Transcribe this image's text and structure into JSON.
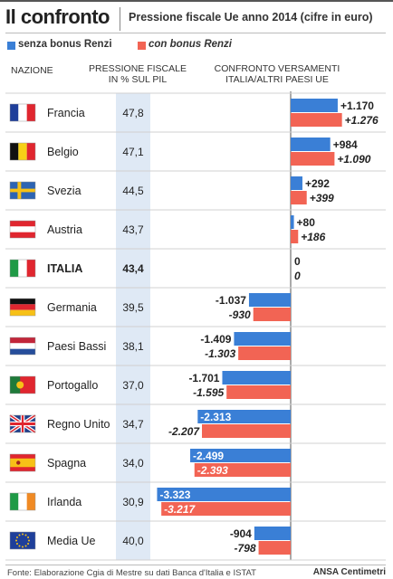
{
  "title": "Il confronto",
  "subtitle": "Pressione fiscale Ue anno 2014 (cifre in euro)",
  "legend": [
    {
      "label": "senza bonus Renzi",
      "color": "#3a7fd6"
    },
    {
      "label": "con bonus Renzi",
      "color": "#f26454"
    }
  ],
  "headers": {
    "nation": "NAZIONE",
    "pressure_line1": "PRESSIONE FISCALE",
    "pressure_line2": "IN % SUL PIL",
    "compare_line1": "CONFRONTO VERSAMENTI",
    "compare_line2": "ITALIA/ALTRI PAESI UE"
  },
  "footer": {
    "source": "Fonte: Elaborazione Cgia di Mestre su dati Banca d'Italia e ISTAT",
    "credit": "ANSA Centimetri"
  },
  "chart_data": {
    "type": "bar",
    "orientation": "horizontal",
    "categories": [
      "Francia",
      "Belgio",
      "Svezia",
      "Austria",
      "ITALIA",
      "Germania",
      "Paesi Bassi",
      "Portogallo",
      "Regno Unito",
      "Spagna",
      "Irlanda",
      "Media Ue"
    ],
    "flags": [
      "france-flag",
      "belgium-flag",
      "sweden-flag",
      "austria-flag",
      "italy-flag",
      "germany-flag",
      "netherlands-flag",
      "portugal-flag",
      "uk-flag",
      "spain-flag",
      "ireland-flag",
      "eu-flag"
    ],
    "pressione_fiscale": [
      "47,8",
      "47,1",
      "44,5",
      "43,7",
      "43,4",
      "39,5",
      "38,1",
      "37,0",
      "34,7",
      "34,0",
      "30,9",
      "40,0"
    ],
    "series": [
      {
        "name": "senza bonus Renzi",
        "color": "#3a7fd6",
        "values": [
          1170,
          984,
          292,
          80,
          0,
          -1037,
          -1409,
          -1701,
          -2313,
          -2499,
          -3323,
          -904
        ],
        "labels": [
          "+1.170",
          "+984",
          "+292",
          "+80",
          "0",
          "-1.037",
          "-1.409",
          "-1.701",
          "-2.313",
          "-2.499",
          "-3.323",
          "-904"
        ]
      },
      {
        "name": "con bonus Renzi",
        "color": "#f26454",
        "values": [
          1276,
          1090,
          399,
          186,
          0,
          -930,
          -1303,
          -1595,
          -2207,
          -2393,
          -3217,
          -798
        ],
        "labels": [
          "+1.276",
          "+1.090",
          "+399",
          "+186",
          "0",
          "-930",
          "-1.303",
          "-1.595",
          "-2.207",
          "-2.393",
          "-3.217",
          "-798"
        ]
      }
    ],
    "highlight": "ITALIA"
  }
}
